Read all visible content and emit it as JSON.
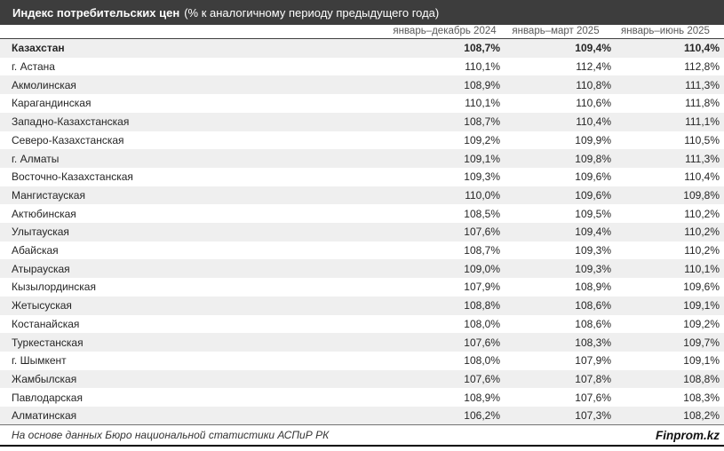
{
  "title": {
    "bold": "Индекс потребительских цен",
    "rest": "(% к аналогичному периоду предыдущего года)"
  },
  "columns": [
    "январь–декабрь 2024",
    "январь–март 2025",
    "январь–июнь 2025"
  ],
  "rows": [
    {
      "label": "Казахстан",
      "bold": true,
      "values": [
        "108,7%",
        "109,4%",
        "110,4%"
      ]
    },
    {
      "label": "г. Астана",
      "bold": false,
      "values": [
        "110,1%",
        "112,4%",
        "112,8%"
      ]
    },
    {
      "label": "Акмолинская",
      "bold": false,
      "values": [
        "108,9%",
        "110,8%",
        "111,3%"
      ]
    },
    {
      "label": "Карагандинская",
      "bold": false,
      "values": [
        "110,1%",
        "110,6%",
        "111,8%"
      ]
    },
    {
      "label": "Западно-Казахстанская",
      "bold": false,
      "values": [
        "108,7%",
        "110,4%",
        "111,1%"
      ]
    },
    {
      "label": "Северо-Казахстанская",
      "bold": false,
      "values": [
        "109,2%",
        "109,9%",
        "110,5%"
      ]
    },
    {
      "label": "г. Алматы",
      "bold": false,
      "values": [
        "109,1%",
        "109,8%",
        "111,3%"
      ]
    },
    {
      "label": "Восточно-Казахстанская",
      "bold": false,
      "values": [
        "109,3%",
        "109,6%",
        "110,4%"
      ]
    },
    {
      "label": "Мангистауская",
      "bold": false,
      "values": [
        "110,0%",
        "109,6%",
        "109,8%"
      ]
    },
    {
      "label": "Актюбинская",
      "bold": false,
      "values": [
        "108,5%",
        "109,5%",
        "110,2%"
      ]
    },
    {
      "label": "Улытауская",
      "bold": false,
      "values": [
        "107,6%",
        "109,4%",
        "110,2%"
      ]
    },
    {
      "label": "Абайская",
      "bold": false,
      "values": [
        "108,7%",
        "109,3%",
        "110,2%"
      ]
    },
    {
      "label": "Атырауская",
      "bold": false,
      "values": [
        "109,0%",
        "109,3%",
        "110,1%"
      ]
    },
    {
      "label": "Кызылординская",
      "bold": false,
      "values": [
        "107,9%",
        "108,9%",
        "109,6%"
      ]
    },
    {
      "label": "Жетысуская",
      "bold": false,
      "values": [
        "108,8%",
        "108,6%",
        "109,1%"
      ]
    },
    {
      "label": "Костанайская",
      "bold": false,
      "values": [
        "108,0%",
        "108,6%",
        "109,2%"
      ]
    },
    {
      "label": "Туркестанская",
      "bold": false,
      "values": [
        "107,6%",
        "108,3%",
        "109,7%"
      ]
    },
    {
      "label": "г. Шымкент",
      "bold": false,
      "values": [
        "108,0%",
        "107,9%",
        "109,1%"
      ]
    },
    {
      "label": "Жамбылская",
      "bold": false,
      "values": [
        "107,6%",
        "107,8%",
        "108,8%"
      ]
    },
    {
      "label": "Павлодарская",
      "bold": false,
      "values": [
        "108,9%",
        "107,6%",
        "108,3%"
      ]
    },
    {
      "label": "Алматинская",
      "bold": false,
      "values": [
        "106,2%",
        "107,3%",
        "108,2%"
      ]
    }
  ],
  "footer": {
    "source": "На основе данных Бюро национальной статистики АСПиР РК",
    "brand": "Finprom.kz"
  },
  "colors": {
    "titlebar_bg": "#3d3d3d",
    "titlebar_text": "#ffffff",
    "stripe_bg": "#efefef",
    "header_text": "#595959",
    "body_text": "#262626",
    "top_border": "#404040",
    "footer_border": "#737373",
    "bottom_rule": "#000000"
  },
  "chart_data": {
    "type": "table",
    "title": "Индекс потребительских цен (% к аналогичному периоду предыдущего года)",
    "categories": [
      "Казахстан",
      "г. Астана",
      "Акмолинская",
      "Карагандинская",
      "Западно-Казахстанская",
      "Северо-Казахстанская",
      "г. Алматы",
      "Восточно-Казахстанская",
      "Мангистауская",
      "Актюбинская",
      "Улытауская",
      "Абайская",
      "Атырауская",
      "Кызылординская",
      "Жетысуская",
      "Костанайская",
      "Туркестанская",
      "г. Шымкент",
      "Жамбылская",
      "Павлодарская",
      "Алматинская"
    ],
    "series": [
      {
        "name": "январь–декабрь 2024",
        "values": [
          108.7,
          110.1,
          108.9,
          110.1,
          108.7,
          109.2,
          109.1,
          109.3,
          110.0,
          108.5,
          107.6,
          108.7,
          109.0,
          107.9,
          108.8,
          108.0,
          107.6,
          108.0,
          107.6,
          108.9,
          106.2
        ]
      },
      {
        "name": "январь–март 2025",
        "values": [
          109.4,
          112.4,
          110.8,
          110.6,
          110.4,
          109.9,
          109.8,
          109.6,
          109.6,
          109.5,
          109.4,
          109.3,
          109.3,
          108.9,
          108.6,
          108.6,
          108.3,
          107.9,
          107.8,
          107.6,
          107.3
        ]
      },
      {
        "name": "январь–июнь 2025",
        "values": [
          110.4,
          112.8,
          111.3,
          111.8,
          111.1,
          110.5,
          111.3,
          110.4,
          109.8,
          110.2,
          110.2,
          110.2,
          110.1,
          109.6,
          109.1,
          109.2,
          109.7,
          109.1,
          108.8,
          108.3,
          108.2
        ]
      }
    ],
    "unit": "%",
    "source_note": "На основе данных Бюро национальной статистики АСПиР РК"
  }
}
